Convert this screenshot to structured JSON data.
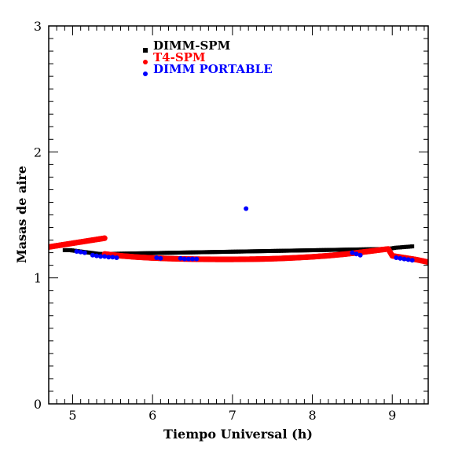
{
  "chart_data": {
    "type": "scatter",
    "xlabel": "Tiempo Universal (h)",
    "ylabel": "Masas de aire",
    "xlim": [
      4.7,
      9.45
    ],
    "ylim": [
      0,
      3
    ],
    "xticks": [
      5,
      6,
      7,
      8,
      9
    ],
    "yticks": [
      0,
      1,
      2,
      3
    ],
    "legend_position": "top-left",
    "grid": false,
    "series": [
      {
        "name": "DIMM-SPM",
        "color": "#000000",
        "marker": "square",
        "x": [
          4.9,
          4.97,
          5.33,
          5.37,
          5.4,
          8.95,
          9.0,
          9.05,
          9.1,
          9.15,
          9.2,
          9.25
        ],
        "y": [
          1.22,
          1.22,
          1.19,
          1.19,
          1.19,
          1.23,
          1.235,
          1.24,
          1.242,
          1.245,
          1.247,
          1.25
        ]
      },
      {
        "name": "T4-SPM",
        "color": "#ff0000",
        "marker": "circle",
        "x": [
          4.7,
          4.8,
          4.9,
          5.0,
          5.1,
          5.2,
          5.3,
          5.4,
          5.4,
          5.6,
          5.8,
          6.0,
          6.2,
          6.4,
          6.6,
          6.8,
          7.0,
          7.2,
          7.4,
          7.6,
          7.8,
          8.0,
          8.2,
          8.4,
          8.6,
          8.8,
          8.95,
          9.0,
          9.1,
          9.2,
          9.3,
          9.45
        ],
        "y": [
          1.245,
          1.255,
          1.265,
          1.275,
          1.285,
          1.295,
          1.305,
          1.315,
          1.19,
          1.175,
          1.165,
          1.158,
          1.153,
          1.15,
          1.148,
          1.147,
          1.147,
          1.148,
          1.15,
          1.154,
          1.16,
          1.167,
          1.176,
          1.188,
          1.202,
          1.218,
          1.23,
          1.175,
          1.165,
          1.155,
          1.145,
          1.125
        ]
      },
      {
        "name": "DIMM PORTABLE",
        "color": "#0000ff",
        "marker": "circle",
        "x": [
          5.05,
          5.1,
          5.15,
          5.25,
          5.3,
          5.35,
          5.4,
          5.45,
          5.5,
          5.55,
          6.05,
          6.1,
          6.35,
          6.4,
          6.45,
          6.5,
          6.55,
          7.17,
          8.5,
          8.55,
          8.6,
          9.05,
          9.1,
          9.15,
          9.2,
          9.25
        ],
        "y": [
          1.21,
          1.205,
          1.2,
          1.18,
          1.175,
          1.17,
          1.17,
          1.165,
          1.165,
          1.16,
          1.16,
          1.155,
          1.155,
          1.15,
          1.15,
          1.15,
          1.15,
          1.55,
          1.2,
          1.19,
          1.18,
          1.16,
          1.155,
          1.15,
          1.145,
          1.14
        ]
      }
    ]
  }
}
